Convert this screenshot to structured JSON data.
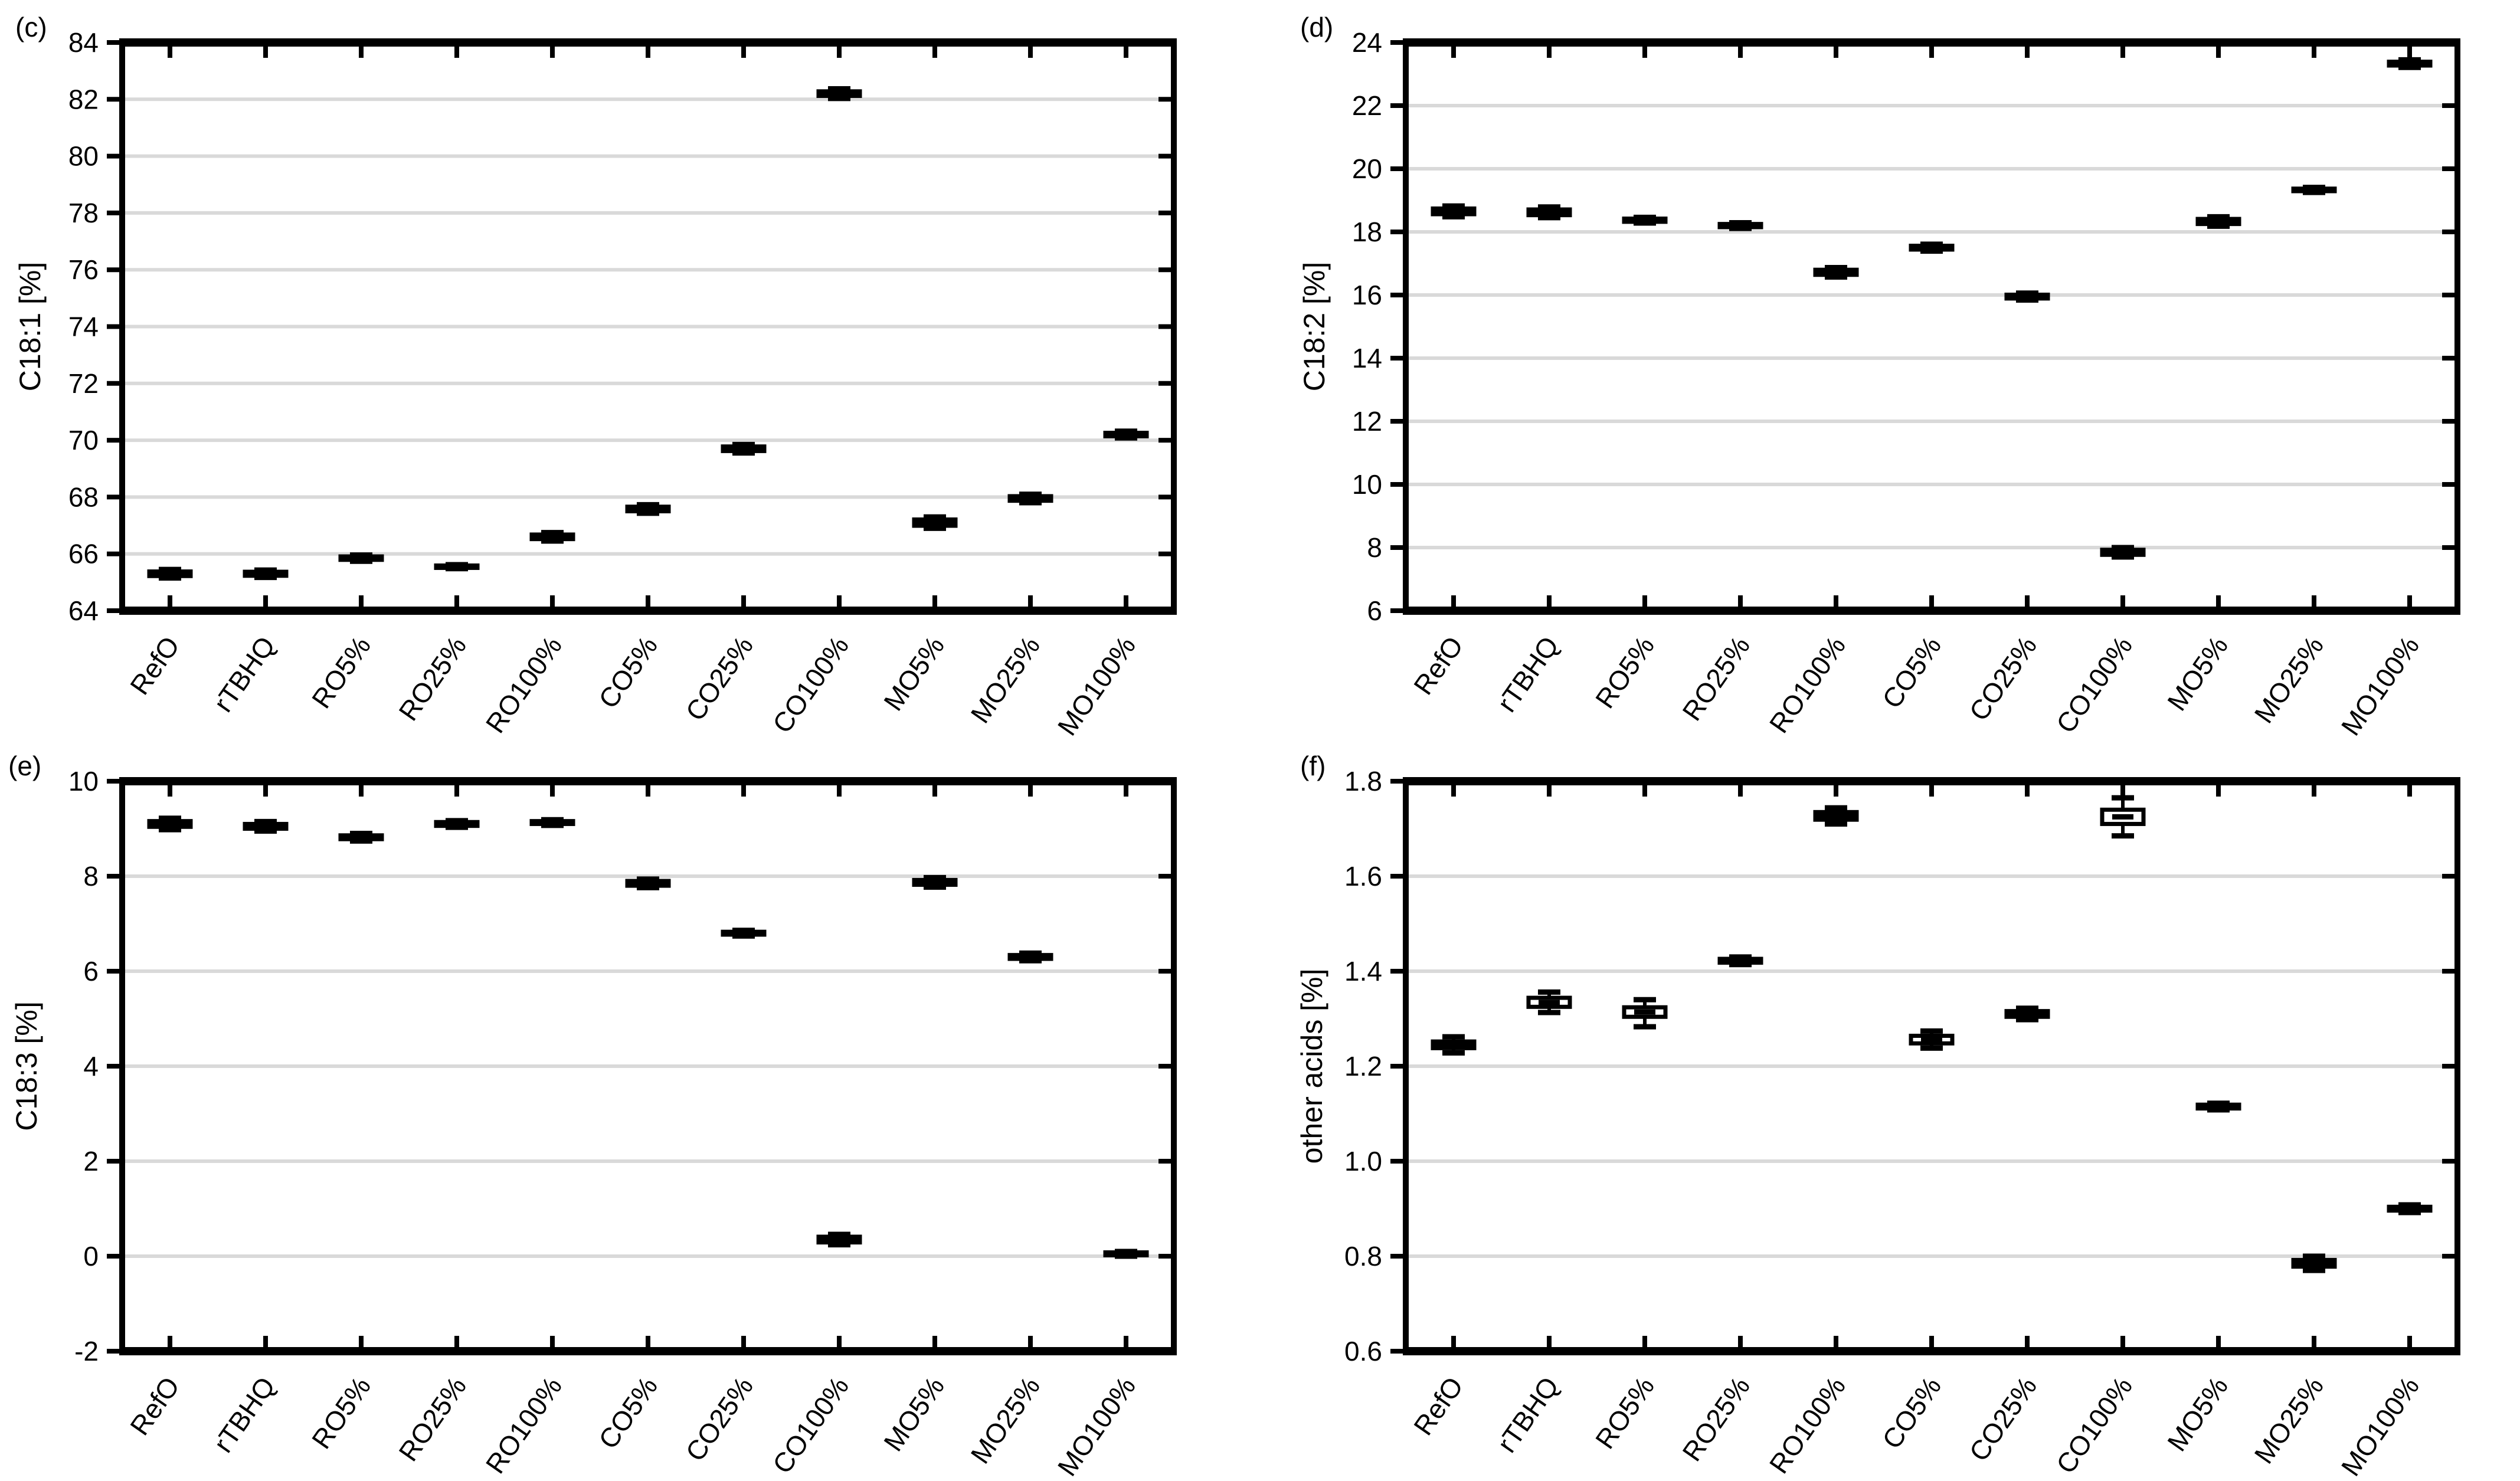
{
  "figure": {
    "background": "#ffffff",
    "axis_color": "#000000",
    "gridline_color": "#d9d9d9",
    "box_fill_dark": "#000000",
    "box_fill_light": "#ffffff"
  },
  "categories": [
    "RefO",
    "rTBHQ",
    "RO5%",
    "RO25%",
    "RO100%",
    "CO5%",
    "CO25%",
    "CO100%",
    "MO5%",
    "MO25%",
    "MO100%"
  ],
  "chart_data": [
    {
      "type": "boxplot",
      "panel_tag": "(c)",
      "ylabel": "C18:1 [%]",
      "ylim": [
        64,
        84
      ],
      "ytick_values": [
        84,
        82,
        80,
        78,
        76,
        74,
        72,
        70,
        68,
        66,
        64
      ],
      "ytick_labels": [
        "84",
        "82",
        "80",
        "78",
        "76",
        "74",
        "72",
        "70",
        "68",
        "66",
        "64"
      ],
      "grid_values": [
        82,
        80,
        78,
        76,
        74,
        72,
        70,
        68,
        66
      ],
      "legend": "none",
      "grid": "horizontal",
      "categories": [
        "RefO",
        "rTBHQ",
        "RO5%",
        "RO25%",
        "RO100%",
        "CO5%",
        "CO25%",
        "CO100%",
        "MO5%",
        "MO25%",
        "MO100%"
      ],
      "boxes": [
        {
          "label": "RefO",
          "median": 65.3,
          "q1": 65.22,
          "q3": 65.38,
          "lo": 65.15,
          "hi": 65.45,
          "fill": "black"
        },
        {
          "label": "rTBHQ",
          "median": 65.3,
          "q1": 65.23,
          "q3": 65.37,
          "lo": 65.17,
          "hi": 65.43,
          "fill": "black"
        },
        {
          "label": "RO5%",
          "median": 65.85,
          "q1": 65.79,
          "q3": 65.91,
          "lo": 65.74,
          "hi": 65.96,
          "fill": "black"
        },
        {
          "label": "RO25%",
          "median": 65.55,
          "q1": 65.51,
          "q3": 65.59,
          "lo": 65.48,
          "hi": 65.62,
          "fill": "black"
        },
        {
          "label": "RO100%",
          "median": 66.6,
          "q1": 66.52,
          "q3": 66.68,
          "lo": 66.45,
          "hi": 66.75,
          "fill": "black"
        },
        {
          "label": "CO5%",
          "median": 67.58,
          "q1": 67.5,
          "q3": 67.66,
          "lo": 67.43,
          "hi": 67.73,
          "fill": "black"
        },
        {
          "label": "CO25%",
          "median": 69.7,
          "q1": 69.62,
          "q3": 69.78,
          "lo": 69.55,
          "hi": 69.85,
          "fill": "black"
        },
        {
          "label": "CO100%",
          "median": 82.2,
          "q1": 82.12,
          "q3": 82.28,
          "lo": 82.03,
          "hi": 82.37,
          "fill": "black"
        },
        {
          "label": "MO5%",
          "median": 67.1,
          "q1": 66.99,
          "q3": 67.21,
          "lo": 66.9,
          "hi": 67.3,
          "fill": "black"
        },
        {
          "label": "MO25%",
          "median": 67.95,
          "q1": 67.87,
          "q3": 68.03,
          "lo": 67.8,
          "hi": 68.1,
          "fill": "black"
        },
        {
          "label": "MO100%",
          "median": 70.2,
          "q1": 70.14,
          "q3": 70.26,
          "lo": 70.08,
          "hi": 70.32,
          "fill": "black"
        }
      ]
    },
    {
      "type": "boxplot",
      "panel_tag": "(d)",
      "ylabel": "C18:2 [%]",
      "ylim": [
        6,
        24
      ],
      "ytick_values": [
        24,
        22,
        20,
        18,
        16,
        14,
        12,
        10,
        8,
        6
      ],
      "ytick_labels": [
        "24",
        "22",
        "20",
        "18",
        "16",
        "14",
        "12",
        "10",
        "8",
        "6"
      ],
      "grid_values": [
        22,
        20,
        18,
        16,
        14,
        12,
        10,
        8
      ],
      "legend": "none",
      "grid": "horizontal",
      "categories": [
        "RefO",
        "rTBHQ",
        "RO5%",
        "RO25%",
        "RO100%",
        "CO5%",
        "CO25%",
        "CO100%",
        "MO5%",
        "MO25%",
        "MO100%"
      ],
      "boxes": [
        {
          "label": "RefO",
          "median": 18.65,
          "q1": 18.56,
          "q3": 18.74,
          "lo": 18.48,
          "hi": 18.82,
          "fill": "black"
        },
        {
          "label": "rTBHQ",
          "median": 18.62,
          "q1": 18.53,
          "q3": 18.71,
          "lo": 18.45,
          "hi": 18.79,
          "fill": "black"
        },
        {
          "label": "RO5%",
          "median": 18.37,
          "q1": 18.32,
          "q3": 18.42,
          "lo": 18.28,
          "hi": 18.46,
          "fill": "black"
        },
        {
          "label": "RO25%",
          "median": 18.2,
          "q1": 18.15,
          "q3": 18.25,
          "lo": 18.11,
          "hi": 18.29,
          "fill": "black"
        },
        {
          "label": "RO100%",
          "median": 16.72,
          "q1": 16.64,
          "q3": 16.8,
          "lo": 16.57,
          "hi": 16.87,
          "fill": "black"
        },
        {
          "label": "CO5%",
          "median": 17.5,
          "q1": 17.44,
          "q3": 17.56,
          "lo": 17.39,
          "hi": 17.61,
          "fill": "black"
        },
        {
          "label": "CO25%",
          "median": 15.95,
          "q1": 15.89,
          "q3": 16.01,
          "lo": 15.84,
          "hi": 16.06,
          "fill": "black"
        },
        {
          "label": "CO100%",
          "median": 7.85,
          "q1": 7.77,
          "q3": 7.93,
          "lo": 7.7,
          "hi": 8.0,
          "fill": "black"
        },
        {
          "label": "MO5%",
          "median": 18.33,
          "q1": 18.25,
          "q3": 18.41,
          "lo": 18.18,
          "hi": 18.48,
          "fill": "black"
        },
        {
          "label": "MO25%",
          "median": 19.33,
          "q1": 19.29,
          "q3": 19.37,
          "lo": 19.25,
          "hi": 19.41,
          "fill": "black"
        },
        {
          "label": "MO100%",
          "median": 23.33,
          "q1": 23.27,
          "q3": 23.39,
          "lo": 23.21,
          "hi": 23.45,
          "fill": "black"
        }
      ]
    },
    {
      "type": "boxplot",
      "panel_tag": "(e)",
      "ylabel": "C18:3 [%]",
      "ylim": [
        -2,
        10
      ],
      "ytick_values": [
        10,
        8,
        6,
        4,
        2,
        0,
        -2
      ],
      "ytick_labels": [
        "10",
        "8",
        "6",
        "4",
        "2",
        "0",
        "-2"
      ],
      "grid_values": [
        8,
        6,
        4,
        2,
        0
      ],
      "legend": "none",
      "grid": "horizontal",
      "categories": [
        "RefO",
        "rTBHQ",
        "RO5%",
        "RO25%",
        "RO100%",
        "CO5%",
        "CO25%",
        "CO100%",
        "MO5%",
        "MO25%",
        "MO100%"
      ],
      "boxes": [
        {
          "label": "RefO",
          "median": 9.1,
          "q1": 9.04,
          "q3": 9.16,
          "lo": 8.98,
          "hi": 9.22,
          "fill": "black"
        },
        {
          "label": "rTBHQ",
          "median": 9.05,
          "q1": 9.0,
          "q3": 9.1,
          "lo": 8.95,
          "hi": 9.15,
          "fill": "black"
        },
        {
          "label": "RO5%",
          "median": 8.82,
          "q1": 8.78,
          "q3": 8.86,
          "lo": 8.74,
          "hi": 8.9,
          "fill": "black"
        },
        {
          "label": "RO25%",
          "median": 9.1,
          "q1": 9.06,
          "q3": 9.14,
          "lo": 9.03,
          "hi": 9.17,
          "fill": "black"
        },
        {
          "label": "RO100%",
          "median": 9.13,
          "q1": 9.1,
          "q3": 9.16,
          "lo": 9.07,
          "hi": 9.19,
          "fill": "black"
        },
        {
          "label": "CO5%",
          "median": 7.85,
          "q1": 7.8,
          "q3": 7.9,
          "lo": 7.76,
          "hi": 7.94,
          "fill": "black"
        },
        {
          "label": "CO25%",
          "median": 6.8,
          "q1": 6.77,
          "q3": 6.83,
          "lo": 6.74,
          "hi": 6.86,
          "fill": "black"
        },
        {
          "label": "CO100%",
          "median": 0.35,
          "q1": 0.29,
          "q3": 0.41,
          "lo": 0.24,
          "hi": 0.46,
          "fill": "black"
        },
        {
          "label": "MO5%",
          "median": 7.87,
          "q1": 7.82,
          "q3": 7.92,
          "lo": 7.77,
          "hi": 7.97,
          "fill": "black"
        },
        {
          "label": "MO25%",
          "median": 6.3,
          "q1": 6.26,
          "q3": 6.34,
          "lo": 6.22,
          "hi": 6.38,
          "fill": "black"
        },
        {
          "label": "MO100%",
          "median": 0.05,
          "q1": 0.02,
          "q3": 0.08,
          "lo": 0.0,
          "hi": 0.1,
          "fill": "black"
        }
      ]
    },
    {
      "type": "boxplot",
      "panel_tag": "(f)",
      "ylabel": "other acids [%]",
      "ylim": [
        0.6,
        1.8
      ],
      "ytick_values": [
        1.8,
        1.6,
        1.4,
        1.2,
        1.0,
        0.8,
        0.6
      ],
      "ytick_labels": [
        "1.8",
        "1.6",
        "1.4",
        "1.2",
        "1.0",
        "0.8",
        "0.6"
      ],
      "grid_values": [
        1.6,
        1.4,
        1.2,
        1.0,
        0.8
      ],
      "legend": "none",
      "grid": "horizontal",
      "categories": [
        "RefO",
        "rTBHQ",
        "RO5%",
        "RO25%",
        "RO100%",
        "CO5%",
        "CO25%",
        "CO100%",
        "MO5%",
        "MO25%",
        "MO100%"
      ],
      "boxes": [
        {
          "label": "RefO",
          "median": 1.245,
          "q1": 1.238,
          "q3": 1.252,
          "lo": 1.228,
          "hi": 1.262,
          "fill": "black"
        },
        {
          "label": "rTBHQ",
          "median": 1.334,
          "q1": 1.325,
          "q3": 1.344,
          "lo": 1.313,
          "hi": 1.356,
          "fill": "white"
        },
        {
          "label": "RO5%",
          "median": 1.314,
          "q1": 1.304,
          "q3": 1.324,
          "lo": 1.283,
          "hi": 1.34,
          "fill": "white"
        },
        {
          "label": "RO25%",
          "median": 1.422,
          "q1": 1.418,
          "q3": 1.426,
          "lo": 1.414,
          "hi": 1.43,
          "fill": "black"
        },
        {
          "label": "RO100%",
          "median": 1.727,
          "q1": 1.719,
          "q3": 1.735,
          "lo": 1.71,
          "hi": 1.744,
          "fill": "black"
        },
        {
          "label": "CO5%",
          "median": 1.256,
          "q1": 1.248,
          "q3": 1.264,
          "lo": 1.238,
          "hi": 1.274,
          "fill": "white"
        },
        {
          "label": "CO25%",
          "median": 1.31,
          "q1": 1.304,
          "q3": 1.316,
          "lo": 1.298,
          "hi": 1.322,
          "fill": "black"
        },
        {
          "label": "CO100%",
          "median": 1.725,
          "q1": 1.71,
          "q3": 1.74,
          "lo": 1.685,
          "hi": 1.765,
          "fill": "white"
        },
        {
          "label": "MO5%",
          "median": 1.115,
          "q1": 1.111,
          "q3": 1.119,
          "lo": 1.108,
          "hi": 1.122,
          "fill": "black"
        },
        {
          "label": "MO25%",
          "median": 0.785,
          "q1": 0.778,
          "q3": 0.792,
          "lo": 0.77,
          "hi": 0.8,
          "fill": "black"
        },
        {
          "label": "MO100%",
          "median": 0.9,
          "q1": 0.896,
          "q3": 0.904,
          "lo": 0.892,
          "hi": 0.908,
          "fill": "black"
        }
      ]
    }
  ]
}
